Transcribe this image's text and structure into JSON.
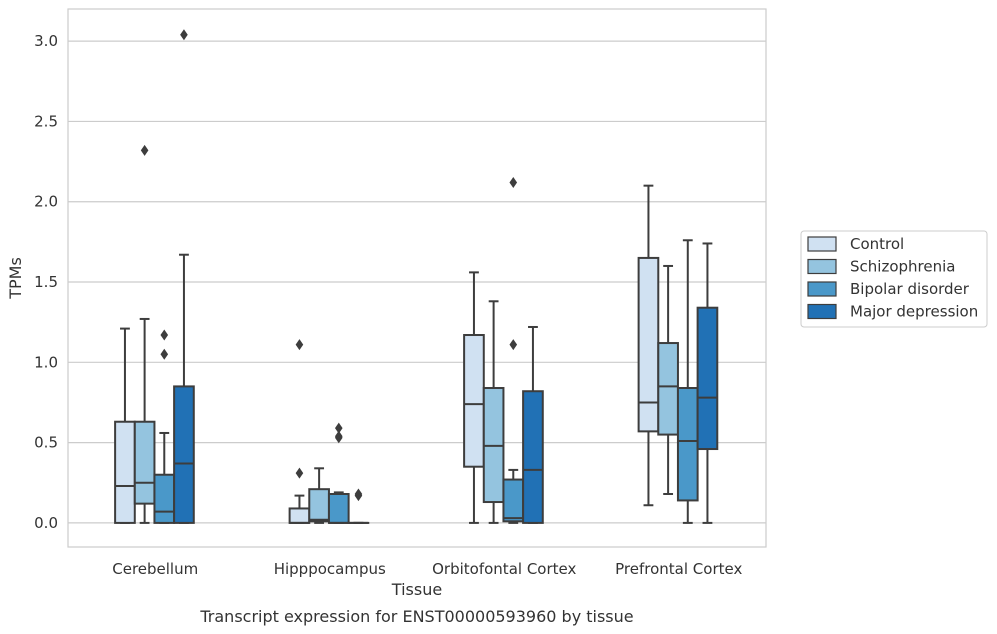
{
  "chart_data": {
    "type": "box",
    "xlabel": "Tissue",
    "ylabel": "TPMs",
    "caption": "Transcript expression for ENST00000593960 by tissue",
    "ylim": [
      -0.15,
      3.2
    ],
    "yticks": [
      "0.0",
      "0.5",
      "1.0",
      "1.5",
      "2.0",
      "2.5",
      "3.0"
    ],
    "grid": "horizontal",
    "legend_position": "right",
    "categories": [
      "Cerebellum",
      "Hipppocampus",
      "Orbitofontal Cortex",
      "Prefrontal Cortex"
    ],
    "series": [
      {
        "name": "Control",
        "color": "#d0e1f2",
        "boxes": [
          {
            "whislo": 0.0,
            "q1": 0.0,
            "med": 0.23,
            "q3": 0.63,
            "whishi": 1.21,
            "fliers": []
          },
          {
            "whislo": 0.0,
            "q1": 0.0,
            "med": 0.0,
            "q3": 0.09,
            "whishi": 0.17,
            "fliers": [
              0.31,
              1.11
            ]
          },
          {
            "whislo": 0.0,
            "q1": 0.35,
            "med": 0.74,
            "q3": 1.17,
            "whishi": 1.56,
            "fliers": []
          },
          {
            "whislo": 0.11,
            "q1": 0.57,
            "med": 0.75,
            "q3": 1.65,
            "whishi": 2.1,
            "fliers": []
          }
        ]
      },
      {
        "name": "Schizophrenia",
        "color": "#94c4df",
        "boxes": [
          {
            "whislo": 0.0,
            "q1": 0.12,
            "med": 0.25,
            "q3": 0.63,
            "whishi": 1.27,
            "fliers": [
              2.32
            ]
          },
          {
            "whislo": 0.0,
            "q1": 0.01,
            "med": 0.02,
            "q3": 0.21,
            "whishi": 0.34,
            "fliers": []
          },
          {
            "whislo": 0.0,
            "q1": 0.13,
            "med": 0.48,
            "q3": 0.84,
            "whishi": 1.38,
            "fliers": []
          },
          {
            "whislo": 0.18,
            "q1": 0.55,
            "med": 0.85,
            "q3": 1.12,
            "whishi": 1.6,
            "fliers": []
          }
        ]
      },
      {
        "name": "Bipolar disorder",
        "color": "#4a98c9",
        "boxes": [
          {
            "whislo": 0.0,
            "q1": 0.0,
            "med": 0.07,
            "q3": 0.3,
            "whishi": 0.56,
            "fliers": [
              1.05,
              1.17
            ]
          },
          {
            "whislo": 0.0,
            "q1": 0.0,
            "med": 0.0,
            "q3": 0.18,
            "whishi": 0.19,
            "fliers": [
              0.53,
              0.54,
              0.59
            ]
          },
          {
            "whislo": 0.0,
            "q1": 0.01,
            "med": 0.03,
            "q3": 0.27,
            "whishi": 0.33,
            "fliers": [
              1.11,
              2.12
            ]
          },
          {
            "whislo": 0.0,
            "q1": 0.14,
            "med": 0.51,
            "q3": 0.84,
            "whishi": 1.76,
            "fliers": []
          }
        ]
      },
      {
        "name": "Major depression",
        "color": "#2171b5",
        "boxes": [
          {
            "whislo": 0.0,
            "q1": 0.0,
            "med": 0.37,
            "q3": 0.85,
            "whishi": 1.67,
            "fliers": [
              3.04
            ]
          },
          {
            "whislo": 0.0,
            "q1": 0.0,
            "med": 0.0,
            "q3": 0.0,
            "whishi": 0.0,
            "fliers": [
              0.17,
              0.18
            ]
          },
          {
            "whislo": 0.0,
            "q1": 0.0,
            "med": 0.33,
            "q3": 0.82,
            "whishi": 1.22,
            "fliers": []
          },
          {
            "whislo": 0.0,
            "q1": 0.46,
            "med": 0.78,
            "q3": 1.34,
            "whishi": 1.74,
            "fliers": []
          }
        ]
      }
    ]
  }
}
